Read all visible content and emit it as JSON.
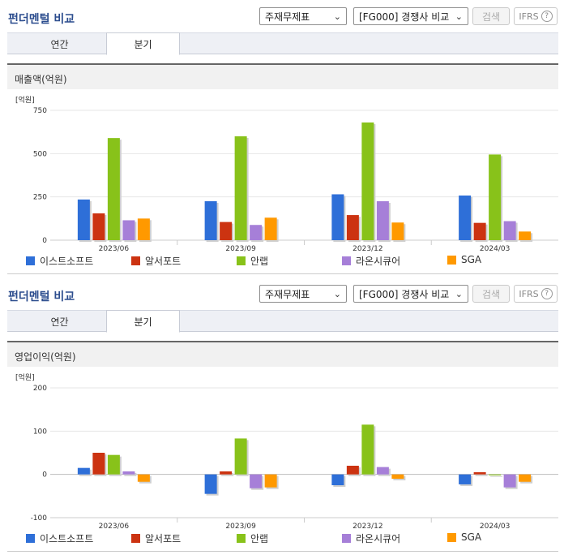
{
  "panels": [
    {
      "title": "펀더멘털 비교",
      "select_statement": "주재무제표",
      "select_peer": "[FG000] 경쟁사 비교",
      "search_label": "검색",
      "ifrs_label": "IFRS",
      "tabs": [
        "연간",
        "분기"
      ],
      "active_tab": "분기",
      "chart_title": "매출액(억원)",
      "unit_label": "[억원]"
    },
    {
      "title": "펀더멘털 비교",
      "select_statement": "주재무제표",
      "select_peer": "[FG000] 경쟁사 비교",
      "search_label": "검색",
      "ifrs_label": "IFRS",
      "tabs": [
        "연간",
        "분기"
      ],
      "active_tab": "분기",
      "chart_title": "영업이익(억원)",
      "unit_label": "[억원]"
    }
  ],
  "colors": {
    "이스트소프트": "#2e6fd8",
    "알서포트": "#cc3311",
    "안랩": "#88c21a",
    "라온시큐어": "#a67fd8",
    "SGA": "#ff9900"
  },
  "chart_data": [
    {
      "type": "bar",
      "title": "매출액(억원)",
      "ylabel": "[억원]",
      "categories": [
        "2023/06",
        "2023/09",
        "2023/12",
        "2024/03"
      ],
      "ylim": [
        0,
        750
      ],
      "yticks": [
        0,
        250,
        500,
        750
      ],
      "series": [
        {
          "name": "이스트소프트",
          "values": [
            235,
            225,
            265,
            258
          ]
        },
        {
          "name": "알서포트",
          "values": [
            155,
            105,
            145,
            100
          ]
        },
        {
          "name": "안랩",
          "values": [
            590,
            600,
            680,
            495
          ]
        },
        {
          "name": "라온시큐어",
          "values": [
            115,
            88,
            225,
            110
          ]
        },
        {
          "name": "SGA",
          "values": [
            125,
            130,
            102,
            50
          ]
        }
      ]
    },
    {
      "type": "bar",
      "title": "영업이익(억원)",
      "ylabel": "[억원]",
      "categories": [
        "2023/06",
        "2023/09",
        "2023/12",
        "2024/03"
      ],
      "ylim": [
        -100,
        200
      ],
      "yticks": [
        -100,
        0,
        100,
        200
      ],
      "series": [
        {
          "name": "이스트소프트",
          "values": [
            15,
            -45,
            -25,
            -23
          ]
        },
        {
          "name": "알서포트",
          "values": [
            50,
            7,
            20,
            5
          ]
        },
        {
          "name": "안랩",
          "values": [
            45,
            83,
            115,
            -2
          ]
        },
        {
          "name": "라온시큐어",
          "values": [
            7,
            -32,
            17,
            -30
          ]
        },
        {
          "name": "SGA",
          "values": [
            -17,
            -30,
            -10,
            -17
          ]
        }
      ]
    }
  ]
}
